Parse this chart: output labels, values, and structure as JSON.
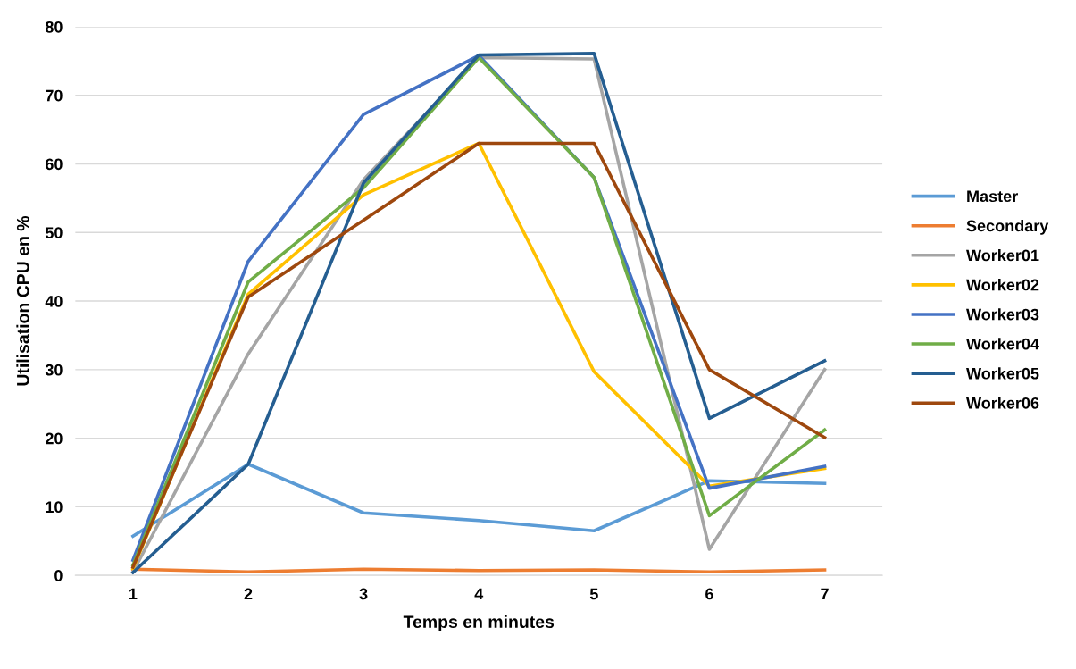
{
  "chart_data": {
    "type": "line",
    "xlabel": "Temps en minutes",
    "ylabel": "Utilisation CPU en %",
    "categories": [
      "1",
      "2",
      "3",
      "4",
      "5",
      "6",
      "7"
    ],
    "ylim": [
      0,
      80
    ],
    "yticks": [
      0,
      10,
      20,
      30,
      40,
      50,
      60,
      70,
      80
    ],
    "grid": "y",
    "legend": "right",
    "marker": "none",
    "line_style": "solid",
    "series": [
      {
        "name": "Master",
        "color": "#5b9bd5",
        "values": [
          5.7,
          16.2,
          9.1,
          8.0,
          6.5,
          13.8,
          13.4
        ]
      },
      {
        "name": "Secondary",
        "color": "#ed7d31",
        "values": [
          0.9,
          0.5,
          0.9,
          0.7,
          0.8,
          0.5,
          0.8
        ]
      },
      {
        "name": "Worker01",
        "color": "#a5a5a5",
        "values": [
          0.5,
          32.3,
          57.7,
          75.5,
          75.3,
          3.8,
          30.0
        ]
      },
      {
        "name": "Worker02",
        "color": "#ffc000",
        "values": [
          1.0,
          41.0,
          55.5,
          63.0,
          29.7,
          13.0,
          15.6
        ]
      },
      {
        "name": "Worker03",
        "color": "#4472c4",
        "values": [
          2.2,
          45.8,
          67.2,
          75.8,
          58.0,
          12.7,
          15.9
        ]
      },
      {
        "name": "Worker04",
        "color": "#70ad47",
        "values": [
          1.5,
          42.8,
          56.5,
          75.5,
          58.0,
          8.7,
          21.2
        ]
      },
      {
        "name": "Worker05",
        "color": "#255e91",
        "values": [
          0.4,
          16.2,
          57.2,
          75.9,
          76.1,
          22.9,
          31.3
        ]
      },
      {
        "name": "Worker06",
        "color": "#9e480e",
        "values": [
          1.2,
          40.6,
          51.8,
          63.0,
          63.0,
          30.0,
          20.1
        ]
      }
    ]
  }
}
